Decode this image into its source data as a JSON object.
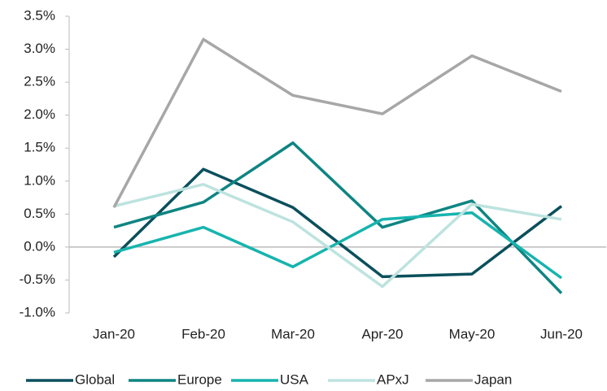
{
  "chart_data": {
    "type": "line",
    "categories": [
      "Jan-20",
      "Feb-20",
      "Mar-20",
      "Apr-20",
      "May-20",
      "Jun-20"
    ],
    "series": [
      {
        "name": "Global",
        "color": "#0b4f5c",
        "values": [
          -0.15,
          1.18,
          0.6,
          -0.45,
          -0.41,
          0.62
        ]
      },
      {
        "name": "Europe",
        "color": "#0e8582",
        "values": [
          0.3,
          0.68,
          1.58,
          0.3,
          0.7,
          -0.7
        ]
      },
      {
        "name": "USA",
        "color": "#17b4ae",
        "values": [
          -0.08,
          0.3,
          -0.3,
          0.42,
          0.52,
          -0.47
        ]
      },
      {
        "name": "APxJ",
        "color": "#bde3df",
        "values": [
          0.62,
          0.95,
          0.38,
          -0.6,
          0.65,
          0.42
        ]
      },
      {
        "name": "Japan",
        "color": "#a7a7a7",
        "values": [
          0.6,
          3.15,
          2.3,
          2.02,
          2.9,
          2.36
        ]
      }
    ],
    "ylim": [
      -1.0,
      3.5
    ],
    "yticks": [
      {
        "value": -1.0,
        "label": "-1.0%"
      },
      {
        "value": -0.5,
        "label": "-0.5%"
      },
      {
        "value": 0,
        "label": "0.0%"
      },
      {
        "value": 0.5,
        "label": "0.5%"
      },
      {
        "value": 1.0,
        "label": "1.0%"
      },
      {
        "value": 1.5,
        "label": "1.5%"
      },
      {
        "value": 2.0,
        "label": "2.0%"
      },
      {
        "value": 2.5,
        "label": "2.5%"
      },
      {
        "value": 3.0,
        "label": "3.0%"
      },
      {
        "value": 3.5,
        "label": "3.5%"
      }
    ],
    "grid": false,
    "legend": "bottom"
  }
}
